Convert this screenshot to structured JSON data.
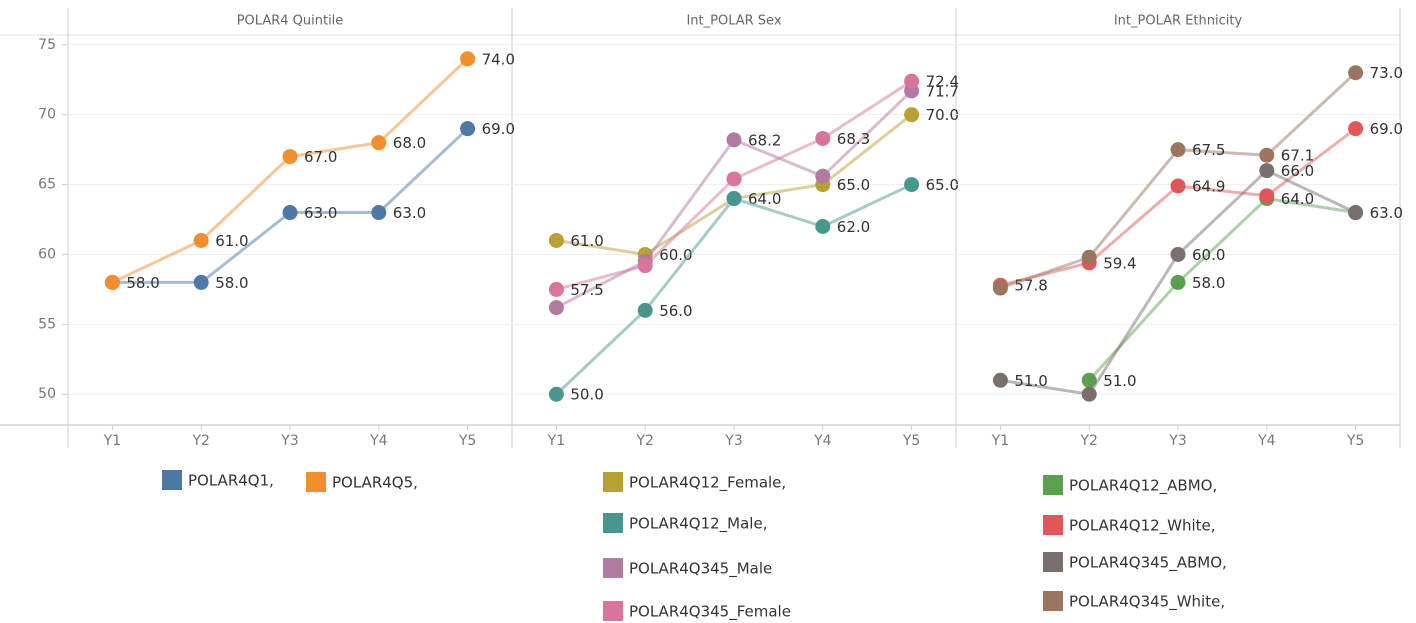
{
  "chart_data": [
    {
      "type": "line",
      "title": "POLAR4 Quintile",
      "categories": [
        "Y1",
        "Y2",
        "Y3",
        "Y4",
        "Y5"
      ],
      "ylim": [
        47.8,
        75.7
      ],
      "yticks": [
        50,
        55,
        60,
        65,
        70,
        75
      ],
      "grid": true,
      "series": [
        {
          "name": "POLAR4Q1,",
          "color": "#4e79a7",
          "values": [
            58,
            58,
            63,
            63,
            69
          ],
          "value_labels": [
            "58.0",
            "58.0",
            "63.0",
            "63.0",
            "69.0"
          ]
        },
        {
          "name": "POLAR4Q5,",
          "color": "#f28e2b",
          "values": [
            58,
            61,
            67,
            68,
            74
          ],
          "value_labels": [
            null,
            "61.0",
            "67.0",
            "68.0",
            "74.0"
          ]
        }
      ]
    },
    {
      "type": "line",
      "title": "Int_POLAR Sex",
      "categories": [
        "Y1",
        "Y2",
        "Y3",
        "Y4",
        "Y5"
      ],
      "ylim": [
        47.8,
        75.7
      ],
      "yticks": [
        50,
        55,
        60,
        65,
        70,
        75
      ],
      "grid": true,
      "series": [
        {
          "name": "POLAR4Q12_Female,",
          "color": "#b9a033",
          "values": [
            61,
            60,
            64,
            65,
            70
          ],
          "value_labels": [
            "61.0",
            "60.0",
            "64.0",
            "65.0",
            "70.0"
          ]
        },
        {
          "name": "POLAR4Q12_Male,",
          "color": "#47978f",
          "values": [
            50,
            56,
            64,
            62,
            65
          ],
          "value_labels": [
            "50.0",
            "56.0",
            null,
            "62.0",
            "65.0"
          ]
        },
        {
          "name": "POLAR4Q345_Male",
          "color": "#b07aa1",
          "values": [
            56.2,
            59.5,
            68.2,
            65.6,
            71.7
          ],
          "value_labels": [
            null,
            null,
            "68.2",
            null,
            "71.7"
          ]
        },
        {
          "name": "POLAR4Q345_Female",
          "color": "#d9759c",
          "values": [
            57.5,
            59.2,
            65.4,
            68.3,
            72.4
          ],
          "value_labels": [
            "57.5",
            null,
            null,
            "68.3",
            "72.4"
          ]
        }
      ]
    },
    {
      "type": "line",
      "title": "Int_POLAR Ethnicity",
      "categories": [
        "Y1",
        "Y2",
        "Y3",
        "Y4",
        "Y5"
      ],
      "ylim": [
        47.8,
        75.7
      ],
      "yticks": [
        50,
        55,
        60,
        65,
        70,
        75
      ],
      "grid": true,
      "series": [
        {
          "name": "POLAR4Q12_ABMO,",
          "color": "#59a14f",
          "values": [
            null,
            51,
            58,
            64,
            63
          ],
          "value_labels": [
            null,
            "51.0",
            "58.0",
            "64.0",
            "63.0"
          ]
        },
        {
          "name": "POLAR4Q12_White,",
          "color": "#e15759",
          "values": [
            57.8,
            59.4,
            64.9,
            64.2,
            69
          ],
          "value_labels": [
            "57.8",
            "59.4",
            "64.9",
            null,
            "69.0"
          ]
        },
        {
          "name": "POLAR4Q345_ABMO,",
          "color": "#79706e",
          "values": [
            51,
            50,
            60,
            66,
            63
          ],
          "value_labels": [
            "51.0",
            null,
            "60.0",
            "66.0",
            null
          ]
        },
        {
          "name": "POLAR4Q345_White,",
          "color": "#9c755f",
          "values": [
            57.6,
            59.8,
            67.5,
            67.1,
            73
          ],
          "value_labels": [
            null,
            null,
            "67.5",
            "67.1",
            "73.0"
          ]
        }
      ]
    }
  ]
}
